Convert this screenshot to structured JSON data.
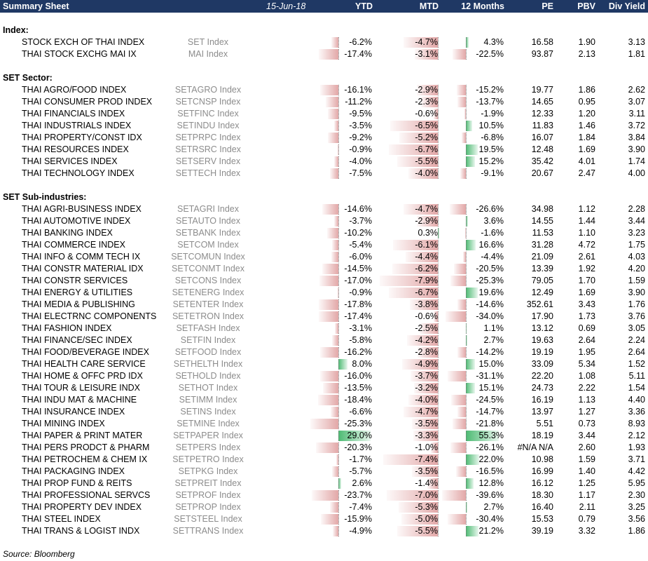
{
  "header": {
    "title": "Summary Sheet",
    "date": "15-Jun-18",
    "columns": [
      "YTD",
      "MTD",
      "12 Months",
      "PE",
      "PBV",
      "Div Yield"
    ]
  },
  "colors": {
    "header_bg": "#1f3864",
    "negative": "#d68282",
    "positive": "#4cba72"
  },
  "sections": [
    {
      "title": "Index:",
      "rows": [
        {
          "name": "STOCK EXCH OF THAI INDEX",
          "ticker": "SET Index",
          "ytd": "-6.2%",
          "mtd": "-4.7%",
          "m12": "4.3%",
          "pe": "16.58",
          "pbv": "1.90",
          "dy": "3.13"
        },
        {
          "name": "THAI STOCK EXCHG MAI IX",
          "ticker": "MAI Index",
          "ytd": "-17.4%",
          "mtd": "-3.1%",
          "m12": "-22.5%",
          "pe": "93.87",
          "pbv": "2.13",
          "dy": "1.81"
        }
      ]
    },
    {
      "title": "SET Sector:",
      "rows": [
        {
          "name": "THAI AGRO/FOOD INDEX",
          "ticker": "SETAGRO Index",
          "ytd": "-16.1%",
          "mtd": "-2.9%",
          "m12": "-15.2%",
          "pe": "19.77",
          "pbv": "1.86",
          "dy": "2.62"
        },
        {
          "name": "THAI CONSUMER PROD INDEX",
          "ticker": "SETCNSP Index",
          "ytd": "-11.2%",
          "mtd": "-2.3%",
          "m12": "-13.7%",
          "pe": "14.65",
          "pbv": "0.95",
          "dy": "3.07"
        },
        {
          "name": "THAI FINANCIALS INDEX",
          "ticker": "SETFINC Index",
          "ytd": "-9.5%",
          "mtd": "-0.6%",
          "m12": "-1.9%",
          "pe": "12.33",
          "pbv": "1.20",
          "dy": "3.11"
        },
        {
          "name": "THAI INDUSTRIALS INDEX",
          "ticker": "SETINDU Index",
          "ytd": "-3.5%",
          "mtd": "-6.5%",
          "m12": "10.5%",
          "pe": "11.83",
          "pbv": "1.46",
          "dy": "3.72"
        },
        {
          "name": "THAI PROPERTY/CONST IDX",
          "ticker": "SETPRPC Index",
          "ytd": "-9.2%",
          "mtd": "-5.2%",
          "m12": "-6.8%",
          "pe": "16.07",
          "pbv": "1.84",
          "dy": "3.84"
        },
        {
          "name": "THAI RESOURCES INDEX",
          "ticker": "SETRSRC Index",
          "ytd": "-0.9%",
          "mtd": "-6.7%",
          "m12": "19.5%",
          "pe": "12.48",
          "pbv": "1.69",
          "dy": "3.90"
        },
        {
          "name": "THAI SERVICES INDEX",
          "ticker": "SETSERV Index",
          "ytd": "-4.0%",
          "mtd": "-5.5%",
          "m12": "15.2%",
          "pe": "35.42",
          "pbv": "4.01",
          "dy": "1.74"
        },
        {
          "name": "THAI TECHNOLOGY INDEX",
          "ticker": "SETTECH Index",
          "ytd": "-7.5%",
          "mtd": "-4.0%",
          "m12": "-9.1%",
          "pe": "20.67",
          "pbv": "2.47",
          "dy": "4.00"
        }
      ]
    },
    {
      "title": "SET Sub-industries:",
      "rows": [
        {
          "name": "THAI AGRI-BUSINESS INDEX",
          "ticker": "SETAGRI Index",
          "ytd": "-14.6%",
          "mtd": "-4.7%",
          "m12": "-26.6%",
          "pe": "34.98",
          "pbv": "1.12",
          "dy": "2.28"
        },
        {
          "name": "THAI AUTOMOTIVE INDEX",
          "ticker": "SETAUTO Index",
          "ytd": "-3.7%",
          "mtd": "-2.9%",
          "m12": "3.6%",
          "pe": "14.55",
          "pbv": "1.44",
          "dy": "3.44"
        },
        {
          "name": "THAI BANKING INDEX",
          "ticker": "SETBANK Index",
          "ytd": "-10.2%",
          "mtd": "0.3%",
          "m12": "-1.6%",
          "pe": "11.53",
          "pbv": "1.10",
          "dy": "3.23"
        },
        {
          "name": "THAI COMMERCE INDEX",
          "ticker": "SETCOM Index",
          "ytd": "-5.4%",
          "mtd": "-6.1%",
          "m12": "16.6%",
          "pe": "31.28",
          "pbv": "4.72",
          "dy": "1.75"
        },
        {
          "name": "THAI INFO & COMM TECH IX",
          "ticker": "SETCOMUN Index",
          "ytd": "-6.0%",
          "mtd": "-4.4%",
          "m12": "-4.4%",
          "pe": "21.09",
          "pbv": "2.61",
          "dy": "4.03"
        },
        {
          "name": "THAI CONSTR MATERIAL IDX",
          "ticker": "SETCONMT Index",
          "ytd": "-14.5%",
          "mtd": "-6.2%",
          "m12": "-20.5%",
          "pe": "13.39",
          "pbv": "1.92",
          "dy": "4.20"
        },
        {
          "name": "THAI CONSTR SERVICES",
          "ticker": "SETCONS Index",
          "ytd": "-17.0%",
          "mtd": "-7.9%",
          "m12": "-25.3%",
          "pe": "79.05",
          "pbv": "1.70",
          "dy": "1.59"
        },
        {
          "name": "THAI ENERGY & UTILITIES",
          "ticker": "SETENERG Index",
          "ytd": "-0.9%",
          "mtd": "-6.7%",
          "m12": "19.6%",
          "pe": "12.49",
          "pbv": "1.69",
          "dy": "3.90"
        },
        {
          "name": "THAI MEDIA & PUBLISHING",
          "ticker": "SETENTER Index",
          "ytd": "-17.8%",
          "mtd": "-3.8%",
          "m12": "-14.6%",
          "pe": "352.61",
          "pbv": "3.43",
          "dy": "1.76"
        },
        {
          "name": "THAI ELECTRNC COMPONENTS",
          "ticker": "SETETRON Index",
          "ytd": "-17.4%",
          "mtd": "-0.6%",
          "m12": "-34.0%",
          "pe": "17.90",
          "pbv": "1.73",
          "dy": "3.76"
        },
        {
          "name": "THAI FASHION INDEX",
          "ticker": "SETFASH Index",
          "ytd": "-3.1%",
          "mtd": "-2.5%",
          "m12": "1.1%",
          "pe": "13.12",
          "pbv": "0.69",
          "dy": "3.05"
        },
        {
          "name": "THAI FINANCE/SEC INDEX",
          "ticker": "SETFIN Index",
          "ytd": "-5.8%",
          "mtd": "-4.2%",
          "m12": "2.7%",
          "pe": "19.63",
          "pbv": "2.64",
          "dy": "2.24"
        },
        {
          "name": "THAI FOOD/BEVERAGE INDEX",
          "ticker": "SETFOOD Index",
          "ytd": "-16.2%",
          "mtd": "-2.8%",
          "m12": "-14.2%",
          "pe": "19.19",
          "pbv": "1.95",
          "dy": "2.64"
        },
        {
          "name": "THAI HEALTH CARE SERVICE",
          "ticker": "SETHELTH Index",
          "ytd": "8.0%",
          "mtd": "-4.9%",
          "m12": "15.0%",
          "pe": "33.09",
          "pbv": "5.34",
          "dy": "1.52"
        },
        {
          "name": "THAI HOME & OFFC PRD IDX",
          "ticker": "SETHOLD Index",
          "ytd": "-16.0%",
          "mtd": "-3.7%",
          "m12": "-31.1%",
          "pe": "22.20",
          "pbv": "1.08",
          "dy": "5.11"
        },
        {
          "name": "THAI TOUR & LEISURE INDX",
          "ticker": "SETHOT Index",
          "ytd": "-13.5%",
          "mtd": "-3.2%",
          "m12": "15.1%",
          "pe": "24.73",
          "pbv": "2.22",
          "dy": "1.54"
        },
        {
          "name": "THAI INDU MAT & MACHINE",
          "ticker": "SETIMM Index",
          "ytd": "-18.4%",
          "mtd": "-4.0%",
          "m12": "-24.5%",
          "pe": "16.19",
          "pbv": "1.13",
          "dy": "4.40"
        },
        {
          "name": "THAI INSURANCE INDEX",
          "ticker": "SETINS Index",
          "ytd": "-6.6%",
          "mtd": "-4.7%",
          "m12": "-14.7%",
          "pe": "13.97",
          "pbv": "1.27",
          "dy": "3.36"
        },
        {
          "name": "THAI MINING INDEX",
          "ticker": "SETMINE Index",
          "ytd": "-25.3%",
          "mtd": "-3.5%",
          "m12": "-21.8%",
          "pe": "5.51",
          "pbv": "0.73",
          "dy": "8.93"
        },
        {
          "name": "THAI PAPER & PRINT MATER",
          "ticker": "SETPAPER Index",
          "ytd": "29.0%",
          "mtd": "-3.3%",
          "m12": "55.3%",
          "pe": "18.19",
          "pbv": "3.44",
          "dy": "2.12"
        },
        {
          "name": "THAI PERS PRODCT & PHARM",
          "ticker": "SETPERS Index",
          "ytd": "-20.3%",
          "mtd": "-1.0%",
          "m12": "-26.1%",
          "pe": "#N/A N/A",
          "pbv": "2.60",
          "dy": "1.93"
        },
        {
          "name": "THAI PETROCHEM & CHEM IX",
          "ticker": "SETPETRO Index",
          "ytd": "-1.7%",
          "mtd": "-7.4%",
          "m12": "22.0%",
          "pe": "10.98",
          "pbv": "1.59",
          "dy": "3.71"
        },
        {
          "name": "THAI PACKAGING INDEX",
          "ticker": "SETPKG Index",
          "ytd": "-5.7%",
          "mtd": "-3.5%",
          "m12": "-16.5%",
          "pe": "16.99",
          "pbv": "1.40",
          "dy": "4.42"
        },
        {
          "name": "THAI PROP FUND & REITS",
          "ticker": "SETPREIT Index",
          "ytd": "2.6%",
          "mtd": "-1.4%",
          "m12": "12.8%",
          "pe": "16.12",
          "pbv": "1.25",
          "dy": "5.95"
        },
        {
          "name": "THAI PROFESSIONAL SERVCS",
          "ticker": "SETPROF Index",
          "ytd": "-23.7%",
          "mtd": "-7.0%",
          "m12": "-39.6%",
          "pe": "18.30",
          "pbv": "1.17",
          "dy": "2.30"
        },
        {
          "name": "THAI PROPERTY DEV INDEX",
          "ticker": "SETPROP Index",
          "ytd": "-7.4%",
          "mtd": "-5.3%",
          "m12": "2.7%",
          "pe": "16.40",
          "pbv": "2.11",
          "dy": "3.25"
        },
        {
          "name": "THAI STEEL INDEX",
          "ticker": "SETSTEEL Index",
          "ytd": "-15.9%",
          "mtd": "-5.0%",
          "m12": "-30.4%",
          "pe": "15.53",
          "pbv": "0.79",
          "dy": "3.56"
        },
        {
          "name": "THAI TRANS & LOGIST INDX",
          "ticker": "SETTRANS Index",
          "ytd": "-4.9%",
          "mtd": "-5.5%",
          "m12": "21.2%",
          "pe": "39.19",
          "pbv": "3.32",
          "dy": "1.86"
        }
      ]
    }
  ],
  "source": "Source: Bloomberg"
}
